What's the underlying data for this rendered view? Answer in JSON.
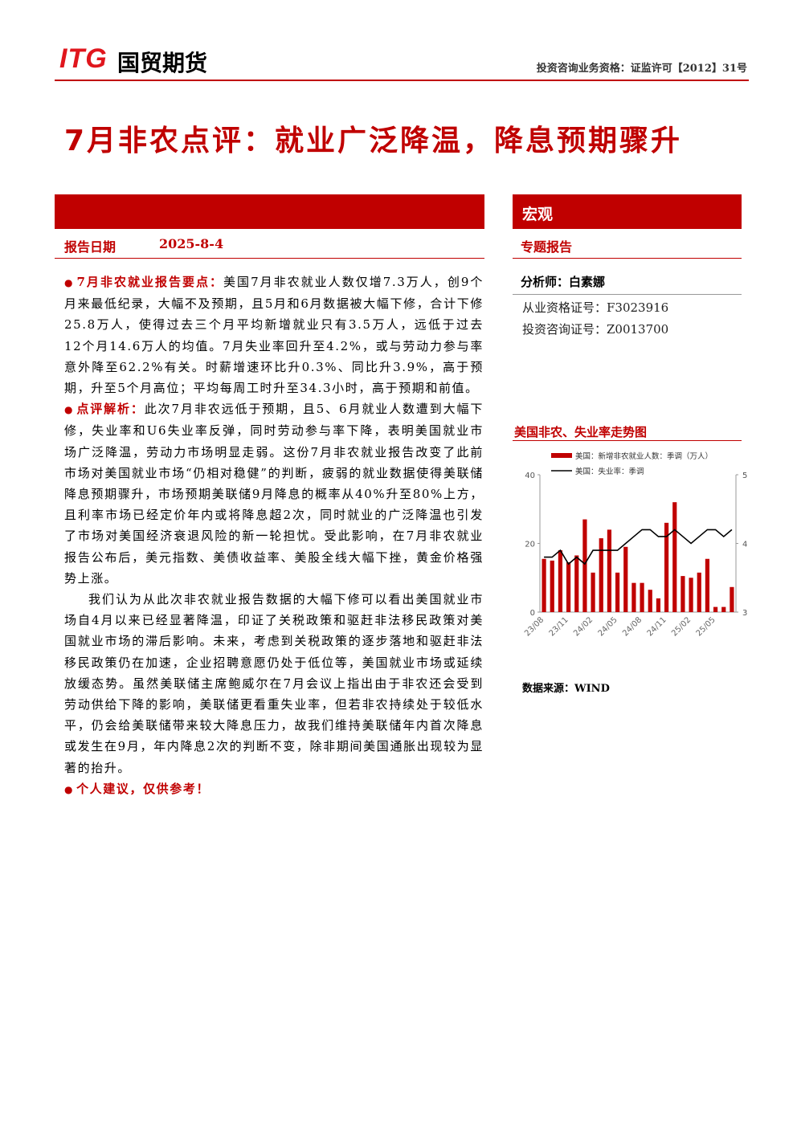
{
  "header": {
    "logo_mark": "ITG",
    "logo_name": "国贸期货",
    "qualification": "投资咨询业务资格：证监许可【2012】31号"
  },
  "title": "7月非农点评：就业广泛降温，降息预期骤升",
  "report_date": {
    "label": "报告日期",
    "value": "2025-8-4"
  },
  "sidebar": {
    "sector": "宏观",
    "report_type": "专题报告",
    "analyst": "分析师：白素娜",
    "license1": "从业资格证号：F3023916",
    "license2": "投资咨询证号：Z0013700",
    "chart_title": "美国非农、失业率走势图",
    "source": "数据来源：WIND"
  },
  "body": [
    {
      "lead": "7月非农就业报告要点：",
      "text": "美国7月非农就业人数仅增7.3万人，创9个月来最低纪录，大幅不及预期，且5月和6月数据被大幅下修，合计下修25.8万人，使得过去三个月平均新增就业只有3.5万人，远低于过去12个月14.6万人的均值。7月失业率回升至4.2%，或与劳动力参与率意外降至62.2%有关。时薪增速环比升0.3%、同比升3.9%，高于预期，升至5个月高位；平均每周工时升至34.3小时，高于预期和前值。"
    },
    {
      "lead": "点评解析：",
      "text": "此次7月非农远低于预期，且5、6月就业人数遭到大幅下修，失业率和U6失业率反弹，同时劳动参与率下降，表明美国就业市场广泛降温，劳动力市场明显走弱。这份7月非农就业报告改变了此前市场对美国就业市场“仍相对稳健”的判断，疲弱的就业数据使得美联储降息预期骤升，市场预期美联储9月降息的概率从40%升至80%上方，且利率市场已经定价年内或将降息超2次，同时就业的广泛降温也引发了市场对美国经济衰退风险的新一轮担忧。受此影响，在7月非农就业报告公布后，美元指数、美债收益率、美股全线大幅下挫，黄金价格强势上涨。"
    },
    {
      "text": "我们认为从此次非农就业报告数据的大幅下修可以看出美国就业市场自4月以来已经显著降温，印证了关税政策和驱赶非法移民政策对美国就业市场的滞后影响。未来，考虑到关税政策的逐步落地和驱赶非法移民政策仍在加速，企业招聘意愿仍处于低位等，美国就业市场或延续放缓态势。虽然美联储主席鲍威尔在7月会议上指出由于非农还会受到劳动供给下降的影响，美联储更看重失业率，但若非农持续处于较低水平，仍会给美联储带来较大降息压力，故我们维持美联储年内首次降息或发生在9月，年内降息2次的判断不变，除非期间美国通胀出现较为显著的抬升。"
    },
    {
      "lead": "个人建议，仅供参考！"
    }
  ],
  "chart_data": {
    "type": "combo",
    "categories": [
      "23/08",
      null,
      null,
      "23/11",
      null,
      null,
      "24/02",
      null,
      null,
      "24/05",
      null,
      null,
      "24/08",
      null,
      null,
      "24/11",
      null,
      null,
      "25/02",
      null,
      null,
      "25/05",
      null,
      null
    ],
    "series": [
      {
        "name": "美国：新增非农就业人数：季调（万人）",
        "type": "bar",
        "color": "#c00000",
        "values": [
          15.5,
          15,
          18,
          14.5,
          16.5,
          27,
          11.5,
          21.5,
          24,
          11.5,
          19,
          8.5,
          8.5,
          6.5,
          4,
          26,
          32,
          10.5,
          10,
          11.5,
          15.5,
          1.5,
          1.5,
          7.3
        ]
      },
      {
        "name": "美国：失业率：季调",
        "type": "line",
        "axis": "y2",
        "color": "#000000",
        "values": [
          3.8,
          3.8,
          3.9,
          3.7,
          3.8,
          3.7,
          3.9,
          3.9,
          3.9,
          3.9,
          4.0,
          4.1,
          4.2,
          4.2,
          4.1,
          4.1,
          4.2,
          4.1,
          4.0,
          4.1,
          4.2,
          4.2,
          4.1,
          4.2
        ]
      }
    ],
    "ylim": [
      0,
      40
    ],
    "yticks": [
      0,
      20,
      40
    ],
    "y2lim": [
      3,
      5
    ],
    "y2ticks": [
      3,
      4,
      5
    ]
  }
}
